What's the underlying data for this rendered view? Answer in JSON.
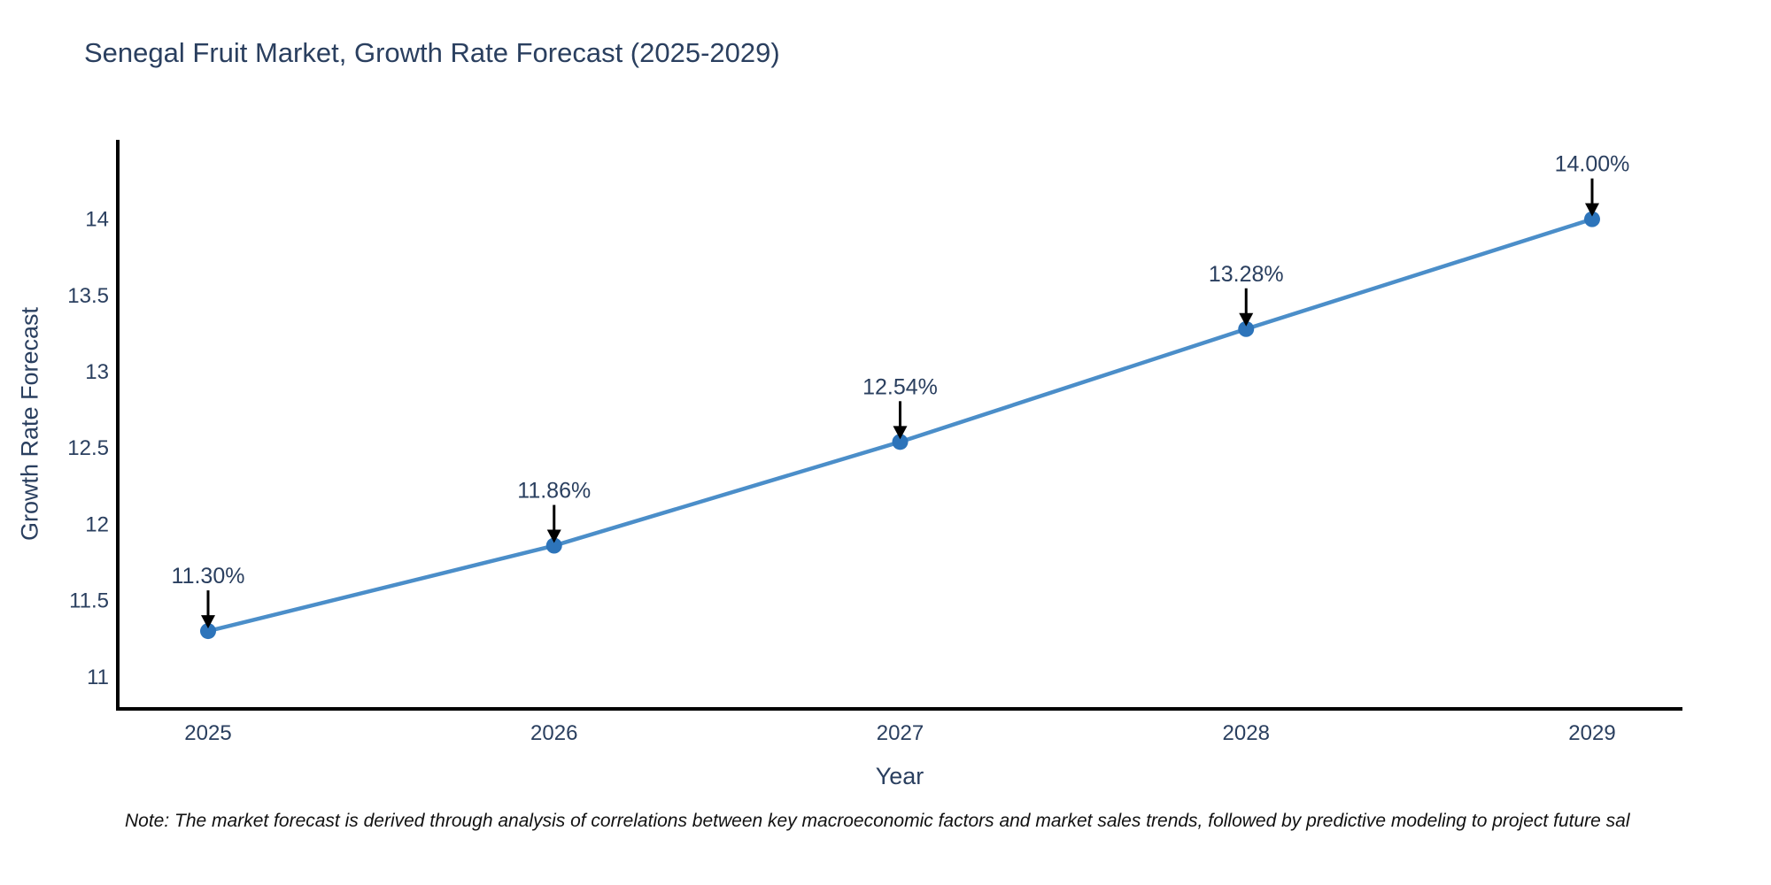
{
  "title": "Senegal Fruit Market, Growth Rate Forecast (2025-2029)",
  "note": "Note: The market forecast is derived through analysis of correlations between key macroeconomic factors and market sales trends, followed by predictive modeling to project future sal",
  "chart_data": {
    "type": "line",
    "x": [
      2025,
      2026,
      2027,
      2028,
      2029
    ],
    "series": [
      {
        "name": "Growth Rate Forecast",
        "values": [
          11.3,
          11.86,
          12.54,
          13.28,
          14.0
        ]
      }
    ],
    "point_labels": [
      "11.30%",
      "11.86%",
      "12.54%",
      "13.28%",
      "14.00%"
    ],
    "xlabel": "Year",
    "ylabel": "Growth Rate Forecast",
    "yticks": [
      11,
      11.5,
      12,
      12.5,
      13,
      13.5,
      14
    ],
    "ylim": [
      10.79,
      14.52
    ],
    "grid": false,
    "legend": "none",
    "annotations_style": "label-above-with-down-arrow",
    "colors": {
      "line": "#4b8ec9",
      "marker": "#2d74ba",
      "axis": "#000000",
      "text": "#2a3f5f",
      "annotation_arrow": "#000000"
    }
  }
}
